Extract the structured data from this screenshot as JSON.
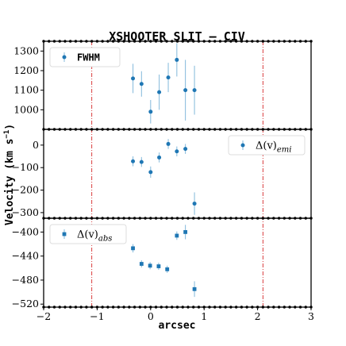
{
  "chart_data": {
    "type": "scatter",
    "title": "XSHOOTER SLIT – CIV",
    "xlabel": "arcsec",
    "ylabel": "Velocity (km s",
    "ylabel_sup": "−1",
    "ylabel_tail": ")",
    "xlim": [
      -2,
      3
    ],
    "x_ticks": [
      -2,
      -1,
      0,
      1,
      2,
      3
    ],
    "x_tick_labels": [
      "−2",
      "−1",
      "0",
      "1",
      "2",
      "3"
    ],
    "vlines_x": [
      -1.1,
      2.1
    ],
    "colors": {
      "marker": "#1f77b4",
      "errorbar": "#8ebfde",
      "vline": "#d62728",
      "frame": "#000000"
    },
    "panels": [
      {
        "name": "FWHM",
        "legend_label": "FWHM",
        "legend_position": "top-left",
        "marker": "circle",
        "ylim": [
          900,
          1350
        ],
        "y_ticks": [
          1000,
          1100,
          1200,
          1300
        ],
        "y_tick_labels": [
          "1000",
          "1100",
          "1200",
          "1300"
        ],
        "points": [
          {
            "x": -0.33,
            "y": 1160,
            "err": 75
          },
          {
            "x": -0.17,
            "y": 1132,
            "err": 65
          },
          {
            "x": 0.0,
            "y": 990,
            "err": 60
          },
          {
            "x": 0.16,
            "y": 1090,
            "err": 90
          },
          {
            "x": 0.33,
            "y": 1165,
            "err": 75
          },
          {
            "x": 0.49,
            "y": 1255,
            "err": 85
          },
          {
            "x": 0.65,
            "y": 1100,
            "err": 155
          },
          {
            "x": 0.82,
            "y": 1100,
            "err": 125
          }
        ]
      },
      {
        "name": "emission shift",
        "legend_label": "Δ(v)",
        "legend_sub": "emi",
        "legend_position": "top-right",
        "marker": "circle",
        "ylim": [
          -325,
          70
        ],
        "y_ticks": [
          0,
          -100,
          -200,
          -300
        ],
        "y_tick_labels": [
          "0",
          "−100",
          "−200",
          "−300"
        ],
        "points": [
          {
            "x": -0.33,
            "y": -72,
            "err": 22
          },
          {
            "x": -0.17,
            "y": -75,
            "err": 22
          },
          {
            "x": 0.0,
            "y": -120,
            "err": 25
          },
          {
            "x": 0.16,
            "y": -55,
            "err": 22
          },
          {
            "x": 0.33,
            "y": 5,
            "err": 22
          },
          {
            "x": 0.49,
            "y": -28,
            "err": 22
          },
          {
            "x": 0.65,
            "y": -17,
            "err": 22
          },
          {
            "x": 0.82,
            "y": -260,
            "err": 50
          }
        ]
      },
      {
        "name": "absorption shift",
        "legend_label": "Δ(v)",
        "legend_sub": "abs",
        "legend_position": "top-left",
        "marker": "square",
        "ylim": [
          -525,
          -377
        ],
        "y_ticks": [
          -400,
          -440,
          -480,
          -520
        ],
        "y_tick_labels": [
          "−400",
          "−440",
          "−480",
          "−520"
        ],
        "points": [
          {
            "x": -0.33,
            "y": -427,
            "err": 7
          },
          {
            "x": -0.17,
            "y": -453,
            "err": 6
          },
          {
            "x": -0.01,
            "y": -456,
            "err": 6
          },
          {
            "x": 0.15,
            "y": -457,
            "err": 6
          },
          {
            "x": 0.31,
            "y": -462,
            "err": 6
          },
          {
            "x": 0.49,
            "y": -406,
            "err": 7
          },
          {
            "x": 0.65,
            "y": -400,
            "err": 12
          },
          {
            "x": 0.82,
            "y": -495,
            "err": 13
          }
        ]
      }
    ]
  }
}
